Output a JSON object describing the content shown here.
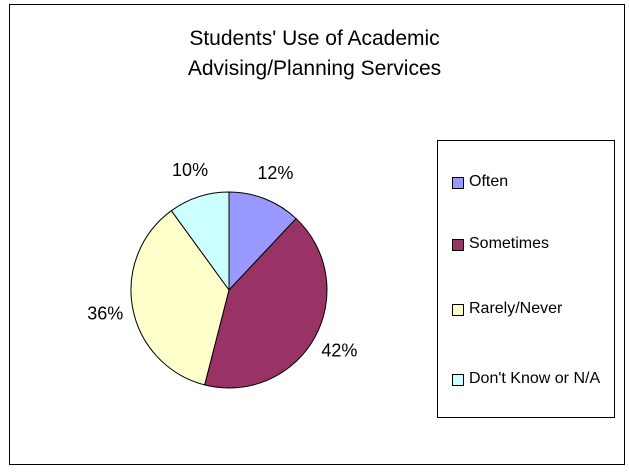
{
  "chart_data": {
    "type": "pie",
    "title_lines": [
      "Students' Use of Academic",
      "Advising/Planning Services"
    ],
    "slices": [
      {
        "label": "Often",
        "value": 12,
        "value_label": "12%",
        "color": "#9999ff"
      },
      {
        "label": "Sometimes",
        "value": 42,
        "value_label": "42%",
        "color": "#993366"
      },
      {
        "label": "Rarely/Never",
        "value": 36,
        "value_label": "36%",
        "color": "#ffffcc"
      },
      {
        "label": "Don't Know or N/A",
        "value": 10,
        "value_label": "10%",
        "color": "#ccffff"
      }
    ],
    "legend_position": "right"
  }
}
